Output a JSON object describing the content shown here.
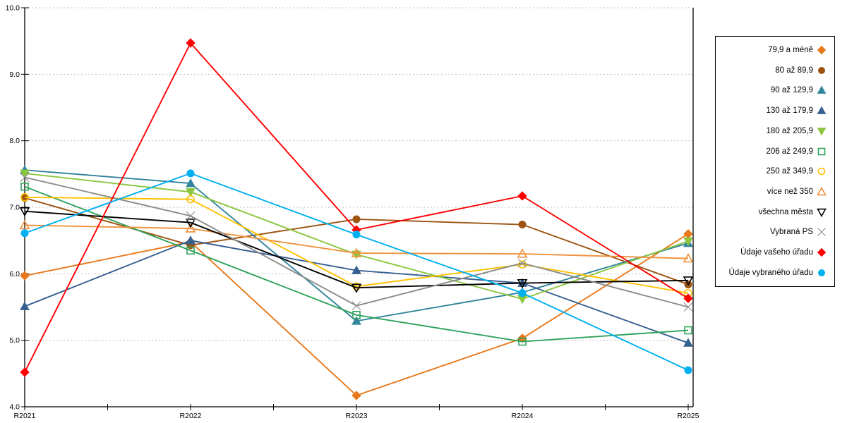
{
  "chart_data": {
    "type": "line",
    "title": "",
    "xlabel": "",
    "ylabel": "",
    "x_categories": [
      "R2021",
      "R2022",
      "R2023",
      "R2024",
      "R2025"
    ],
    "y_axis": {
      "min": 4.0,
      "max": 10.0,
      "step": 1.0,
      "tick_labels": [
        "4.0",
        "5.0",
        "6.0",
        "7.0",
        "8.0",
        "9.0",
        "10.0"
      ]
    },
    "grid": "horizontal-dashed",
    "grid_color": "#bfbfbf",
    "axis_color": "#000000",
    "legend_position": "right",
    "series": [
      {
        "name": "79,9 a méně",
        "marker": "diamond",
        "fill": "filled",
        "color": "#E8791B",
        "values": [
          5.97,
          6.48,
          4.17,
          5.03,
          6.6
        ]
      },
      {
        "name": "80 až 89,9",
        "marker": "circle",
        "fill": "filled",
        "color": "#9C5410",
        "values": [
          7.14,
          6.43,
          6.82,
          6.74,
          5.84
        ]
      },
      {
        "name": "90 až 129,9",
        "marker": "triangle-up",
        "fill": "filled",
        "color": "#31859C",
        "values": [
          7.56,
          7.36,
          5.29,
          5.72,
          6.46
        ]
      },
      {
        "name": "130 až 179,9",
        "marker": "triangle-up",
        "fill": "filled",
        "color": "#365F91",
        "values": [
          5.51,
          6.5,
          6.05,
          5.86,
          4.96
        ]
      },
      {
        "name": "180 až 205,9",
        "marker": "triangle-down",
        "fill": "filled",
        "color": "#8CC63E",
        "values": [
          7.51,
          7.23,
          6.29,
          5.62,
          6.49
        ]
      },
      {
        "name": "206 až 249,9",
        "marker": "square",
        "fill": "open",
        "color": "#2FA35C",
        "values": [
          7.31,
          6.35,
          5.38,
          4.98,
          5.15
        ]
      },
      {
        "name": "250 až 349,9",
        "marker": "circle",
        "fill": "open",
        "color": "#FFC000",
        "values": [
          7.15,
          7.12,
          5.81,
          6.14,
          5.71
        ]
      },
      {
        "name": "více než 350",
        "marker": "triangle-up",
        "fill": "open",
        "color": "#F0913D",
        "values": [
          6.73,
          6.68,
          6.31,
          6.3,
          6.23
        ]
      },
      {
        "name": "všechna města",
        "marker": "triangle-down",
        "fill": "open",
        "color": "#000000",
        "values": [
          6.94,
          6.77,
          5.79,
          5.86,
          5.9
        ]
      },
      {
        "name": "Vybraná PS",
        "marker": "x",
        "fill": "open",
        "color": "#8C8C8C",
        "values": [
          7.45,
          6.87,
          5.52,
          6.16,
          5.5
        ]
      },
      {
        "name": "Údaje vašeho úřadu",
        "marker": "diamond",
        "fill": "filled",
        "color": "#FF0000",
        "values": [
          4.52,
          9.47,
          6.66,
          7.17,
          5.63
        ]
      },
      {
        "name": "Údaje vybraného úřadu",
        "marker": "circle",
        "fill": "filled",
        "color": "#00B0F0",
        "values": [
          6.61,
          7.51,
          6.59,
          5.71,
          4.55
        ]
      }
    ]
  }
}
